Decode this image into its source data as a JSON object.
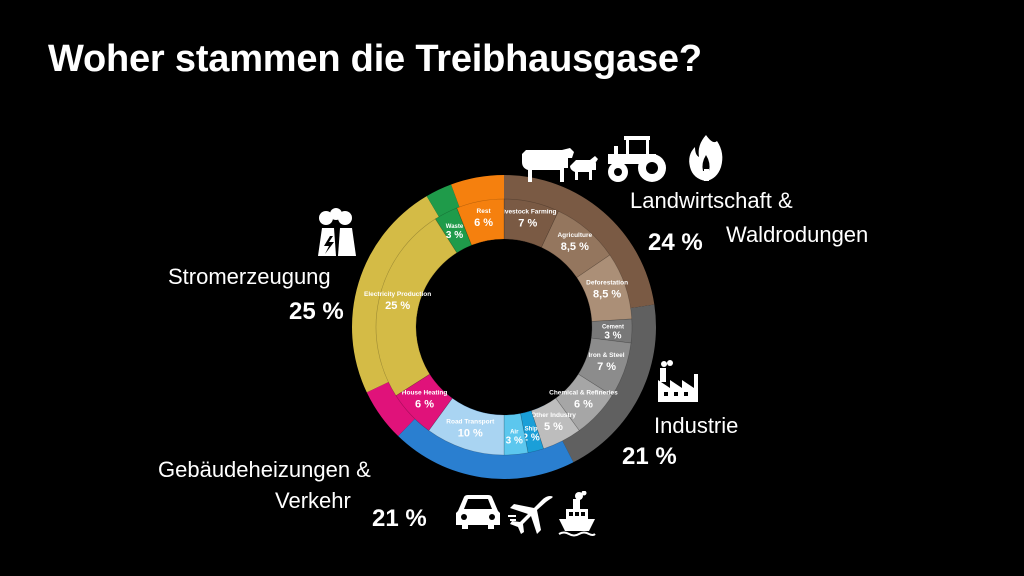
{
  "title": "Woher stammen die Treibhausgase?",
  "groups": {
    "land": {
      "label_line1": "Landwirtschaft &",
      "label_line2": "Waldrodungen",
      "pct": "24 %"
    },
    "power": {
      "label": "Stromerzeugung",
      "pct": "25 %"
    },
    "industry": {
      "label": "Industrie",
      "pct": "21 %"
    },
    "buildings": {
      "label_line1": "Gebäudeheizungen &",
      "label_line2": "Verkehr",
      "pct": "21 %"
    }
  },
  "chart_data": {
    "type": "pie",
    "subtype": "sunburst-donut",
    "title": "Woher stammen die Treibhausgase?",
    "outer_ring": [
      {
        "name": "Landwirtschaft & Waldrodungen",
        "value": 24,
        "color": "#7a5a44"
      },
      {
        "name": "Industrie",
        "value": 21,
        "color": "#606060"
      },
      {
        "name": "Gebäudeheizungen & Verkehr",
        "value": 21,
        "color": "#2a7fd0"
      },
      {
        "name": "House Heating",
        "value": 6,
        "color": "#e0127a"
      },
      {
        "name": "Stromerzeugung",
        "value": 25,
        "color": "#d4bb46"
      },
      {
        "name": "Waste",
        "value": 3,
        "color": "#1f9b4a"
      },
      {
        "name": "Rest",
        "value": 6,
        "color": "#f5800e"
      }
    ],
    "inner_ring": [
      {
        "label": "Livestock Farming",
        "value": 7,
        "value_label": "7 %",
        "color": "#7a5a44"
      },
      {
        "label": "Agriculture",
        "value": 8.5,
        "value_label": "8,5 %",
        "color": "#94765e"
      },
      {
        "label": "Deforestation",
        "value": 8.5,
        "value_label": "8,5 %",
        "color": "#ab8f77"
      },
      {
        "label": "Cement",
        "value": 3,
        "value_label": "3 %",
        "color": "#787878"
      },
      {
        "label": "Iron & Steel",
        "value": 7,
        "value_label": "7 %",
        "color": "#8c8c8c"
      },
      {
        "label": "Chemical & Refineries",
        "value": 6,
        "value_label": "6 %",
        "color": "#a6a6a6"
      },
      {
        "label": "Other Industry",
        "value": 5,
        "value_label": "5 %",
        "color": "#bdbdbd"
      },
      {
        "label": "Ship",
        "value": 2,
        "value_label": "2 %",
        "color": "#1a9fd8"
      },
      {
        "label": "Air",
        "value": 3,
        "value_label": "3 %",
        "color": "#5cc7ee"
      },
      {
        "label": "Road Transport",
        "value": 10,
        "value_label": "10 %",
        "color": "#a9d4f2"
      },
      {
        "label": "House Heating",
        "value": 6,
        "value_label": "6 %",
        "color": "#e0127a"
      },
      {
        "label": "Electricity Production",
        "value": 25,
        "value_label": "25 %",
        "color": "#d4bb46"
      },
      {
        "label": "Waste",
        "value": 3,
        "value_label": "3 %",
        "color": "#1f9b4a"
      },
      {
        "label": "Rest",
        "value": 6,
        "value_label": "6 %",
        "color": "#f5800e"
      }
    ]
  }
}
